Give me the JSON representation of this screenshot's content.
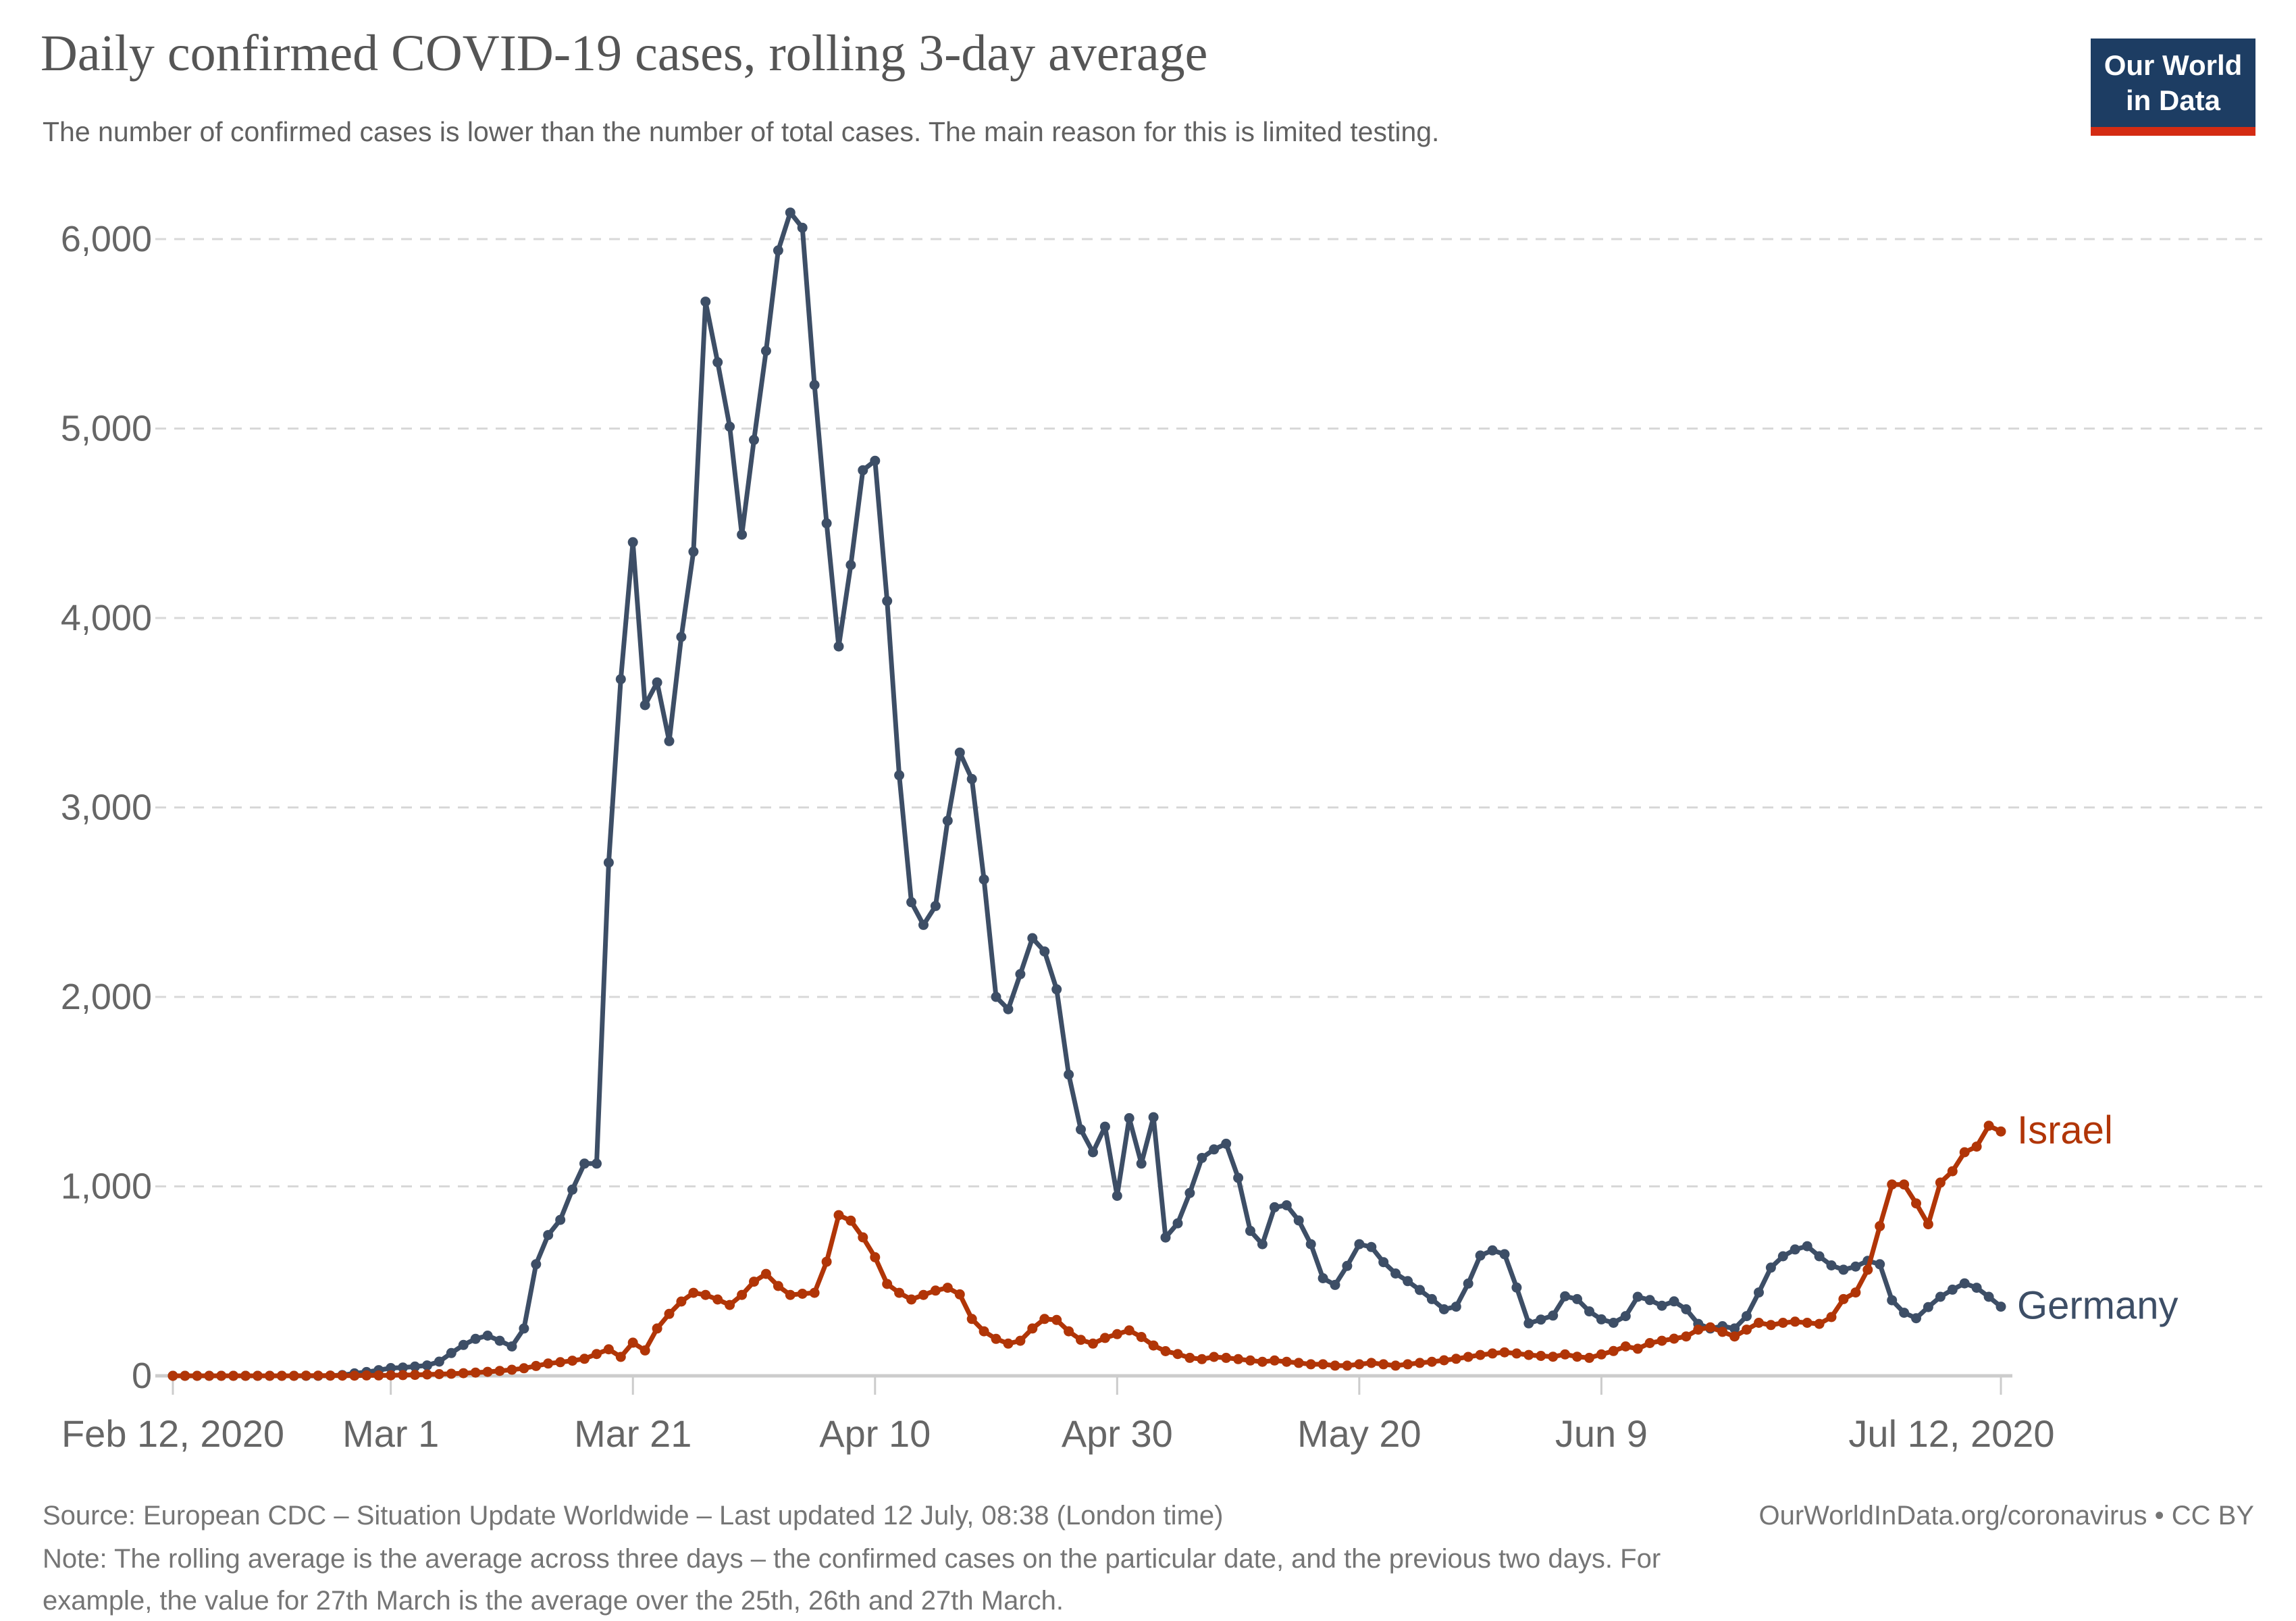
{
  "header": {
    "title": "Daily confirmed COVID-19 cases, rolling 3-day average",
    "subtitle": "The number of confirmed cases is lower than the number of total cases. The main reason for this is limited testing.",
    "logo": {
      "line1": "Our World",
      "line2": "in Data",
      "bg_color": "#1d3d63",
      "bar_color": "#d42b13"
    }
  },
  "footer": {
    "source": "Source: European CDC – Situation Update Worldwide – Last updated 12 July, 08:38 (London time)",
    "link": "OurWorldInData.org/coronavirus • CC BY",
    "note_line1": "Note: The rolling average is the average across three days – the confirmed cases on the particular date, and the previous two days. For",
    "note_line2": "example, the value for 27th March is the average over the 25th, 26th and 27th March."
  },
  "chart_data": {
    "type": "line",
    "title": "Daily confirmed COVID-19 cases, rolling 3-day average",
    "x_start_date": "2020-02-12",
    "x_end_date": "2020-07-12",
    "grid": "horizontal-dashed",
    "legend_position": "end-of-line-labels",
    "ylim": [
      0,
      6300
    ],
    "yticks": [
      {
        "value": 0,
        "label": "0"
      },
      {
        "value": 1000,
        "label": "1,000"
      },
      {
        "value": 2000,
        "label": "2,000"
      },
      {
        "value": 3000,
        "label": "3,000"
      },
      {
        "value": 4000,
        "label": "4,000"
      },
      {
        "value": 5000,
        "label": "5,000"
      },
      {
        "value": 6000,
        "label": "6,000"
      }
    ],
    "xticks": [
      {
        "day": 0,
        "label": "Feb 12, 2020"
      },
      {
        "day": 18,
        "label": "Mar 1"
      },
      {
        "day": 38,
        "label": "Mar 21"
      },
      {
        "day": 58,
        "label": "Apr 10"
      },
      {
        "day": 78,
        "label": "Apr 30"
      },
      {
        "day": 98,
        "label": "May 20"
      },
      {
        "day": 118,
        "label": "Jun 9"
      },
      {
        "day": 151,
        "label": "Jul 12, 2020"
      }
    ],
    "dates": [
      "2020-02-12",
      "2020-02-13",
      "2020-02-14",
      "2020-02-15",
      "2020-02-16",
      "2020-02-17",
      "2020-02-18",
      "2020-02-19",
      "2020-02-20",
      "2020-02-21",
      "2020-02-22",
      "2020-02-23",
      "2020-02-24",
      "2020-02-25",
      "2020-02-26",
      "2020-02-27",
      "2020-02-28",
      "2020-02-29",
      "2020-03-01",
      "2020-03-02",
      "2020-03-03",
      "2020-03-04",
      "2020-03-05",
      "2020-03-06",
      "2020-03-07",
      "2020-03-08",
      "2020-03-09",
      "2020-03-10",
      "2020-03-11",
      "2020-03-12",
      "2020-03-13",
      "2020-03-14",
      "2020-03-15",
      "2020-03-16",
      "2020-03-17",
      "2020-03-18",
      "2020-03-19",
      "2020-03-20",
      "2020-03-21",
      "2020-03-22",
      "2020-03-23",
      "2020-03-24",
      "2020-03-25",
      "2020-03-26",
      "2020-03-27",
      "2020-03-28",
      "2020-03-29",
      "2020-03-30",
      "2020-03-31",
      "2020-04-01",
      "2020-04-02",
      "2020-04-03",
      "2020-04-04",
      "2020-04-05",
      "2020-04-06",
      "2020-04-07",
      "2020-04-08",
      "2020-04-09",
      "2020-04-10",
      "2020-04-11",
      "2020-04-12",
      "2020-04-13",
      "2020-04-14",
      "2020-04-15",
      "2020-04-16",
      "2020-04-17",
      "2020-04-18",
      "2020-04-19",
      "2020-04-20",
      "2020-04-21",
      "2020-04-22",
      "2020-04-23",
      "2020-04-24",
      "2020-04-25",
      "2020-04-26",
      "2020-04-27",
      "2020-04-28",
      "2020-04-29",
      "2020-04-30",
      "2020-05-01",
      "2020-05-02",
      "2020-05-03",
      "2020-05-04",
      "2020-05-05",
      "2020-05-06",
      "2020-05-07",
      "2020-05-08",
      "2020-05-09",
      "2020-05-10",
      "2020-05-11",
      "2020-05-12",
      "2020-05-13",
      "2020-05-14",
      "2020-05-15",
      "2020-05-16",
      "2020-05-17",
      "2020-05-18",
      "2020-05-19",
      "2020-05-20",
      "2020-05-21",
      "2020-05-22",
      "2020-05-23",
      "2020-05-24",
      "2020-05-25",
      "2020-05-26",
      "2020-05-27",
      "2020-05-28",
      "2020-05-29",
      "2020-05-30",
      "2020-05-31",
      "2020-06-01",
      "2020-06-02",
      "2020-06-03",
      "2020-06-04",
      "2020-06-05",
      "2020-06-06",
      "2020-06-07",
      "2020-06-08",
      "2020-06-09",
      "2020-06-10",
      "2020-06-11",
      "2020-06-12",
      "2020-06-13",
      "2020-06-14",
      "2020-06-15",
      "2020-06-16",
      "2020-06-17",
      "2020-06-18",
      "2020-06-19",
      "2020-06-20",
      "2020-06-21",
      "2020-06-22",
      "2020-06-23",
      "2020-06-24",
      "2020-06-25",
      "2020-06-26",
      "2020-06-27",
      "2020-06-28",
      "2020-06-29",
      "2020-06-30",
      "2020-07-01",
      "2020-07-02",
      "2020-07-03",
      "2020-07-04",
      "2020-07-05",
      "2020-07-06",
      "2020-07-07",
      "2020-07-08",
      "2020-07-09",
      "2020-07-10",
      "2020-07-11",
      "2020-07-12"
    ],
    "series": [
      {
        "name": "Germany",
        "color": "#3d4e66",
        "values": [
          0,
          0,
          0,
          0,
          0,
          0,
          0,
          0,
          0,
          0,
          0,
          0,
          0,
          1,
          4,
          13,
          20,
          30,
          41,
          44,
          49,
          55,
          75,
          120,
          163,
          195,
          212,
          185,
          155,
          250,
          589,
          743,
          823,
          983,
          1120,
          1120,
          2709,
          3677,
          4400,
          3540,
          3660,
          3350,
          3900,
          4350,
          5670,
          5350,
          5010,
          4440,
          4940,
          5410,
          5940,
          6140,
          6060,
          5230,
          4500,
          3850,
          4280,
          4780,
          4830,
          4090,
          3170,
          2500,
          2380,
          2480,
          2930,
          3290,
          3150,
          2620,
          2000,
          1935,
          2120,
          2310,
          2240,
          2040,
          1590,
          1300,
          1180,
          1315,
          950,
          1360,
          1120,
          1365,
          730,
          805,
          965,
          1150,
          1195,
          1225,
          1045,
          765,
          695,
          890,
          900,
          820,
          695,
          515,
          480,
          580,
          695,
          680,
          600,
          540,
          500,
          453,
          405,
          351,
          365,
          487,
          635,
          662,
          642,
          466,
          277,
          297,
          318,
          420,
          405,
          340,
          298,
          280,
          315,
          417,
          400,
          370,
          393,
          351,
          274,
          250,
          262,
          250,
          315,
          440,
          571,
          631,
          667,
          684,
          631,
          583,
          560,
          577,
          607,
          589,
          399,
          333,
          304,
          363,
          417,
          455,
          488,
          465,
          417,
          365
        ]
      },
      {
        "name": "Israel",
        "color": "#b13507",
        "values": [
          0,
          0,
          0,
          0,
          0,
          0,
          0,
          0,
          0,
          0,
          0,
          1,
          1,
          1,
          1,
          1,
          2,
          2,
          3,
          4,
          5,
          7,
          9,
          11,
          14,
          17,
          21,
          26,
          32,
          40,
          52,
          65,
          72,
          80,
          90,
          115,
          140,
          100,
          175,
          134,
          250,
          327,
          392,
          438,
          427,
          403,
          374,
          427,
          497,
          538,
          474,
          427,
          433,
          438,
          602,
          848,
          819,
          731,
          626,
          485,
          438,
          403,
          427,
          450,
          465,
          430,
          300,
          235,
          195,
          170,
          185,
          250,
          300,
          295,
          235,
          190,
          170,
          200,
          220,
          240,
          205,
          160,
          130,
          115,
          95,
          88,
          100,
          95,
          88,
          81,
          74,
          81,
          74,
          68,
          61,
          61,
          54,
          54,
          61,
          68,
          61,
          54,
          61,
          68,
          74,
          82,
          90,
          100,
          110,
          118,
          124,
          118,
          110,
          105,
          101,
          113,
          101,
          95,
          113,
          131,
          155,
          143,
          173,
          185,
          196,
          208,
          244,
          256,
          232,
          208,
          244,
          280,
          268,
          280,
          286,
          280,
          274,
          310,
          405,
          440,
          560,
          790,
          1010,
          1010,
          910,
          800,
          1020,
          1080,
          1180,
          1210,
          1320,
          1290
        ]
      }
    ]
  }
}
